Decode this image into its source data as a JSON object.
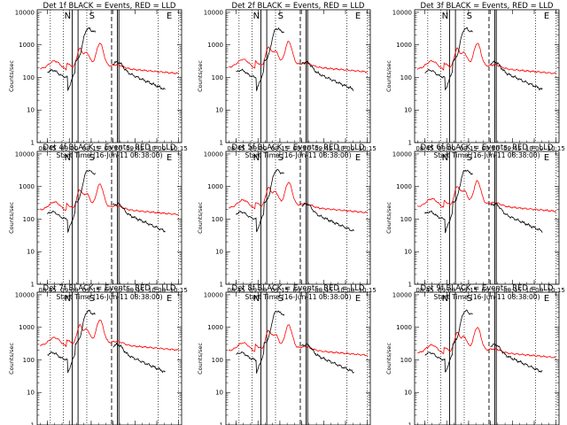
{
  "chart_data": {
    "type": "line",
    "title_template": "Det {det} BLACK = Events, RED = LLD",
    "xlabel": "Start Time (16-Jun-11 08:38:00)",
    "ylabel": "Counts/sec",
    "x_ticks": [
      "08:45",
      "09:00",
      "09:15",
      "09:30",
      "09:45",
      "10:00",
      "10:15"
    ],
    "x_tick_minutes": [
      45,
      60,
      75,
      90,
      105,
      120,
      135
    ],
    "xlim_minutes": [
      38,
      137
    ],
    "y_scale": "log",
    "y_ticks": [
      "1",
      "10",
      "100",
      "1000",
      "10000"
    ],
    "ylim": [
      1,
      12000
    ],
    "series_colors": {
      "events": "#000000",
      "lld": "#ff0000"
    },
    "markers": [
      {
        "label": "N",
        "minute": 56
      },
      {
        "label": "S",
        "minute": 73
      },
      {
        "label": "E",
        "minute": 126
      }
    ],
    "dotted_lines_minutes": [
      47,
      56,
      72,
      121,
      135
    ],
    "solid_lines_minutes": [
      62,
      66,
      93,
      94
    ],
    "dashed_lines_minutes": [
      89
    ],
    "panels": [
      {
        "det": "1f"
      },
      {
        "det": "2f"
      },
      {
        "det": "3f"
      },
      {
        "det": "4f"
      },
      {
        "det": "5f"
      },
      {
        "det": "6f"
      },
      {
        "det": "7f"
      },
      {
        "det": "8f"
      },
      {
        "det": "9f"
      }
    ]
  }
}
